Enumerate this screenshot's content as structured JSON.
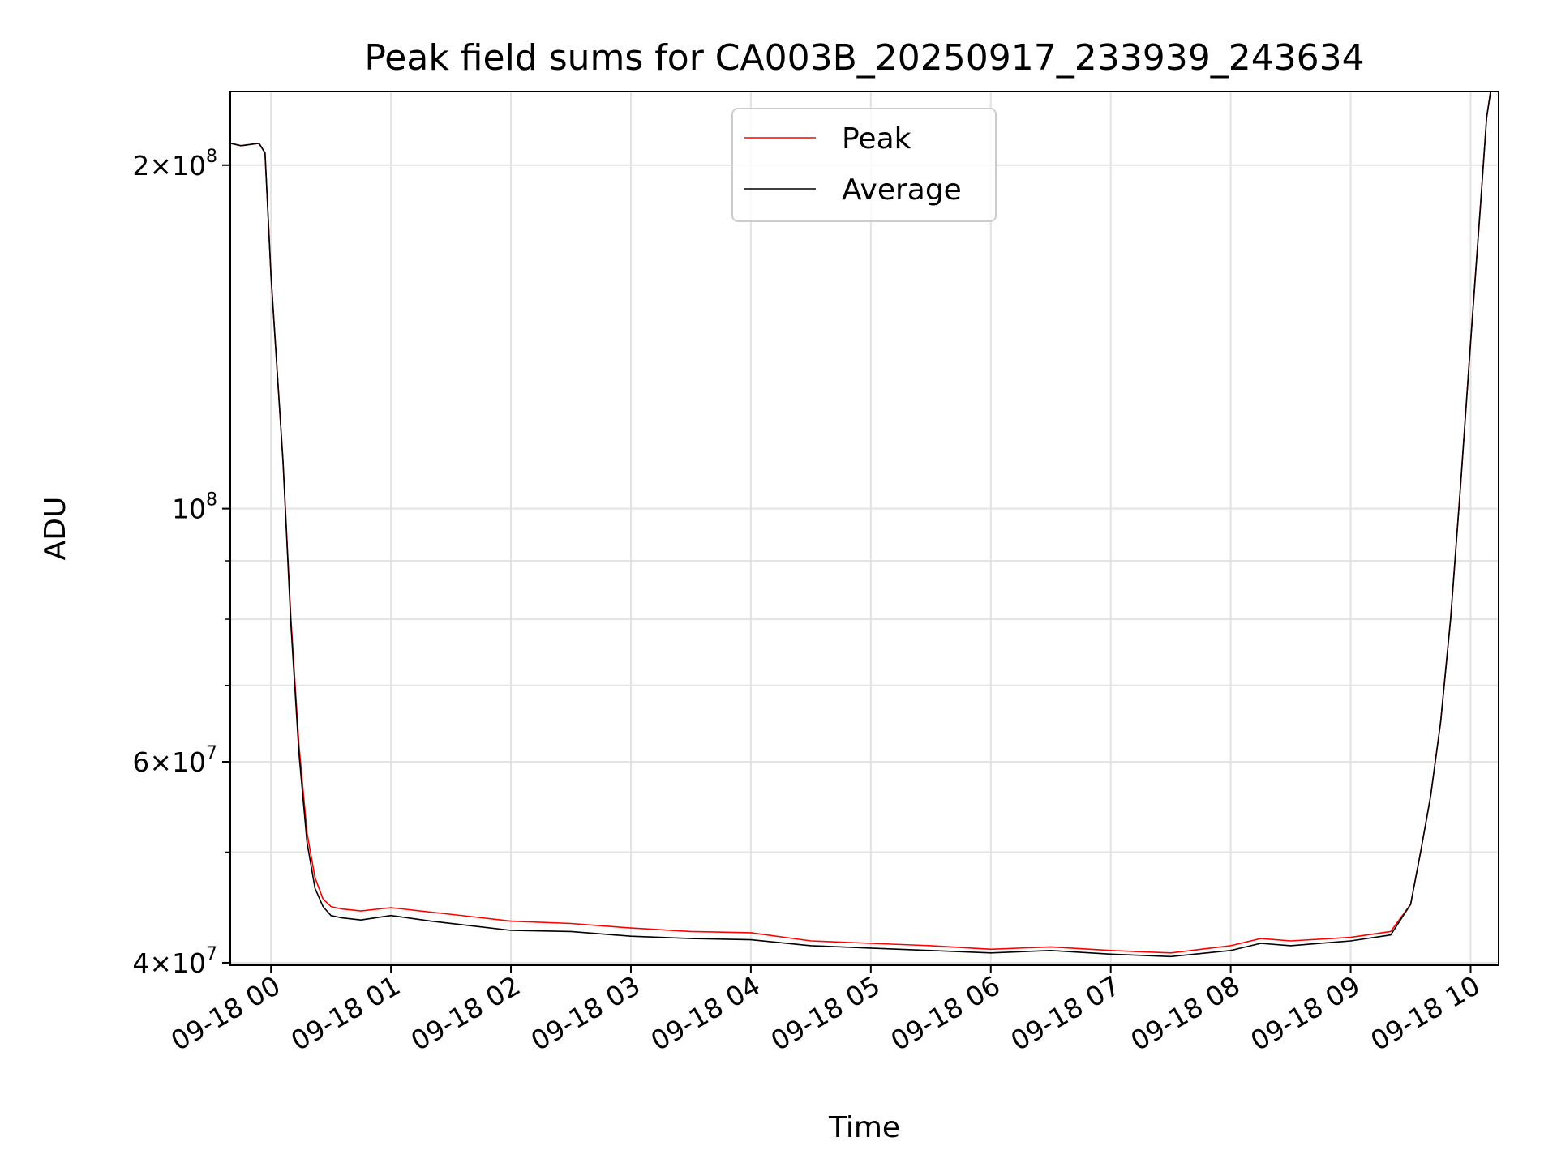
{
  "chart_data": {
    "type": "line",
    "title": "Peak field sums for CA003B_20250917_233939_243634",
    "xlabel": "Time",
    "ylabel": "ADU",
    "yscale": "log",
    "ylim": [
      39800000,
      232000000
    ],
    "xlim": [
      "2025-09-17 23:39:39",
      "2025-09-18 10:14:00"
    ],
    "grid": true,
    "legend_position": "upper center",
    "x_tick_labels": [
      "09-18 00",
      "09-18 01",
      "09-18 02",
      "09-18 03",
      "09-18 04",
      "09-18 05",
      "09-18 06",
      "09-18 07",
      "09-18 08",
      "09-18 09",
      "09-18 10"
    ],
    "x_tick_values": [
      "2025-09-18 00:00",
      "2025-09-18 01:00",
      "2025-09-18 02:00",
      "2025-09-18 03:00",
      "2025-09-18 04:00",
      "2025-09-18 05:00",
      "2025-09-18 06:00",
      "2025-09-18 07:00",
      "2025-09-18 08:00",
      "2025-09-18 09:00",
      "2025-09-18 10:00"
    ],
    "y_ticks": [
      {
        "value": 40000000,
        "mantissa": "4",
        "exponent": "7"
      },
      {
        "value": 60000000,
        "mantissa": "6",
        "exponent": "7"
      },
      {
        "value": 100000000,
        "mantissa": "",
        "exponent": "8"
      },
      {
        "value": 200000000,
        "mantissa": "2",
        "exponent": "8"
      }
    ],
    "y_minor_ticks": [
      50000000,
      70000000,
      80000000,
      90000000
    ],
    "series": [
      {
        "name": "Peak",
        "color": "#ff0000",
        "x": [
          "2025-09-17 23:39:39",
          "2025-09-17 23:45:00",
          "2025-09-17 23:54:00",
          "2025-09-17 23:57:00",
          "2025-09-18 00:00:00",
          "2025-09-18 00:06:00",
          "2025-09-18 00:10:00",
          "2025-09-18 00:14:00",
          "2025-09-18 00:18:00",
          "2025-09-18 00:22:00",
          "2025-09-18 00:26:00",
          "2025-09-18 00:30:00",
          "2025-09-18 00:35:00",
          "2025-09-18 00:45:00",
          "2025-09-18 01:00:00",
          "2025-09-18 01:20:00",
          "2025-09-18 01:40:00",
          "2025-09-18 02:00:00",
          "2025-09-18 02:30:00",
          "2025-09-18 03:00:00",
          "2025-09-18 03:30:00",
          "2025-09-18 04:00:00",
          "2025-09-18 04:30:00",
          "2025-09-18 05:00:00",
          "2025-09-18 05:30:00",
          "2025-09-18 06:00:00",
          "2025-09-18 06:30:00",
          "2025-09-18 07:00:00",
          "2025-09-18 07:30:00",
          "2025-09-18 08:00:00",
          "2025-09-18 08:15:00",
          "2025-09-18 08:30:00",
          "2025-09-18 09:00:00",
          "2025-09-18 09:20:00",
          "2025-09-18 09:30:00",
          "2025-09-18 09:35:00",
          "2025-09-18 09:40:00",
          "2025-09-18 09:45:00",
          "2025-09-18 09:50:00",
          "2025-09-18 09:55:00",
          "2025-09-18 10:00:00",
          "2025-09-18 10:05:00",
          "2025-09-18 10:08:00",
          "2025-09-18 10:10:00"
        ],
        "y": [
          209000000,
          208000000,
          209000000,
          205000000,
          160000000,
          110000000,
          80000000,
          62000000,
          52000000,
          47500000,
          45500000,
          44800000,
          44600000,
          44400000,
          44700000,
          44300000,
          43900000,
          43500000,
          43300000,
          42900000,
          42600000,
          42500000,
          41800000,
          41600000,
          41400000,
          41100000,
          41300000,
          41000000,
          40800000,
          41400000,
          42000000,
          41800000,
          42100000,
          42600000,
          45000000,
          50000000,
          56000000,
          65000000,
          80000000,
          105000000,
          140000000,
          185000000,
          220000000,
          232000000
        ]
      },
      {
        "name": "Average",
        "color": "#000000",
        "x": [
          "2025-09-17 23:39:39",
          "2025-09-17 23:45:00",
          "2025-09-17 23:54:00",
          "2025-09-17 23:57:00",
          "2025-09-18 00:00:00",
          "2025-09-18 00:06:00",
          "2025-09-18 00:10:00",
          "2025-09-18 00:14:00",
          "2025-09-18 00:18:00",
          "2025-09-18 00:22:00",
          "2025-09-18 00:26:00",
          "2025-09-18 00:30:00",
          "2025-09-18 00:35:00",
          "2025-09-18 00:45:00",
          "2025-09-18 01:00:00",
          "2025-09-18 01:20:00",
          "2025-09-18 01:40:00",
          "2025-09-18 02:00:00",
          "2025-09-18 02:30:00",
          "2025-09-18 03:00:00",
          "2025-09-18 03:30:00",
          "2025-09-18 04:00:00",
          "2025-09-18 04:30:00",
          "2025-09-18 05:00:00",
          "2025-09-18 05:30:00",
          "2025-09-18 06:00:00",
          "2025-09-18 06:30:00",
          "2025-09-18 07:00:00",
          "2025-09-18 07:30:00",
          "2025-09-18 08:00:00",
          "2025-09-18 08:15:00",
          "2025-09-18 08:30:00",
          "2025-09-18 09:00:00",
          "2025-09-18 09:20:00",
          "2025-09-18 09:30:00",
          "2025-09-18 09:35:00",
          "2025-09-18 09:40:00",
          "2025-09-18 09:45:00",
          "2025-09-18 09:50:00",
          "2025-09-18 09:55:00",
          "2025-09-18 10:00:00",
          "2025-09-18 10:05:00",
          "2025-09-18 10:08:00",
          "2025-09-18 10:10:00"
        ],
        "y": [
          209000000,
          208000000,
          209000000,
          205000000,
          160000000,
          110000000,
          79000000,
          61000000,
          51000000,
          46500000,
          44800000,
          44000000,
          43800000,
          43600000,
          44000000,
          43500000,
          43100000,
          42700000,
          42600000,
          42200000,
          42000000,
          41900000,
          41400000,
          41200000,
          41000000,
          40800000,
          41000000,
          40700000,
          40500000,
          41000000,
          41600000,
          41400000,
          41800000,
          42300000,
          45000000,
          50000000,
          56000000,
          65000000,
          80000000,
          105000000,
          140000000,
          185000000,
          220000000,
          232000000
        ]
      }
    ]
  }
}
